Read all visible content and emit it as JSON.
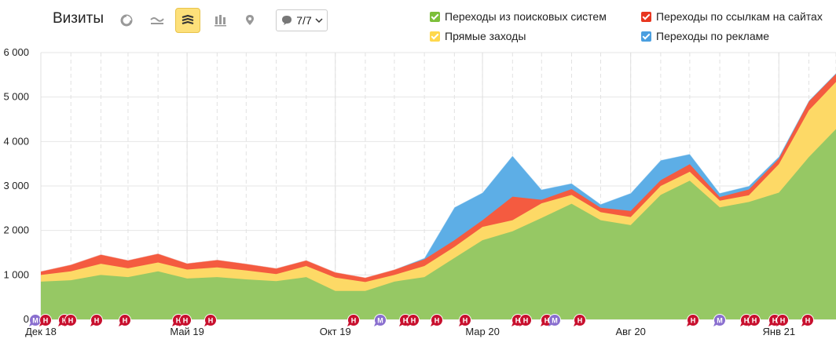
{
  "header": {
    "title": "Визиты",
    "annotations_label": "7/7",
    "tools": [
      "pie-chart-icon",
      "line-chart-icon",
      "stacked-area-icon",
      "bar-chart-icon",
      "map-icon"
    ]
  },
  "legend": [
    {
      "name": "Переходы из поисковых систем",
      "color": "#7cbf3a"
    },
    {
      "name": "Прямые заходы",
      "color": "#ffd84c"
    },
    {
      "name": "Переходы по ссылкам на сайтах",
      "color": "#e8361f"
    },
    {
      "name": "Переходы по рекламе",
      "color": "#4a9fe0"
    }
  ],
  "chart_data": {
    "type": "area",
    "stacked": true,
    "x": [
      "2018-12-01",
      "2019-01-01",
      "2019-02-01",
      "2019-03-01",
      "2019-04-01",
      "2019-05-01",
      "2019-06-01",
      "2019-07-01",
      "2019-08-01",
      "2019-09-01",
      "2019-10-01",
      "2019-11-01",
      "2019-12-01",
      "2020-01-01",
      "2020-02-01",
      "2020-03-01",
      "2020-04-01",
      "2020-05-01",
      "2020-06-01",
      "2020-07-01",
      "2020-08-01",
      "2020-09-01",
      "2020-10-01",
      "2020-11-01",
      "2020-12-01",
      "2021-01-01",
      "2021-02-01",
      "2021-03-01"
    ],
    "x_tick_labels": [
      "Дек 18",
      "Май 19",
      "Окт 19",
      "Мар 20",
      "Авг 20",
      "Янв 21"
    ],
    "x_tick_dates": [
      "2018-12-01",
      "2019-05-01",
      "2019-10-01",
      "2020-03-01",
      "2020-08-01",
      "2021-01-01"
    ],
    "series": [
      {
        "name": "Переходы из поисковых систем",
        "color": "#96c864",
        "values": [
          850,
          880,
          1000,
          950,
          1080,
          920,
          950,
          900,
          860,
          950,
          640,
          640,
          850,
          950,
          1380,
          1780,
          1980,
          2280,
          2600,
          2230,
          2120,
          2800,
          3120,
          2520,
          2640,
          2850,
          3650,
          4280
        ]
      },
      {
        "name": "Прямые заходы",
        "color": "#fdd966",
        "values": [
          150,
          200,
          250,
          200,
          200,
          200,
          220,
          200,
          160,
          250,
          300,
          200,
          150,
          250,
          250,
          300,
          250,
          330,
          200,
          180,
          180,
          200,
          200,
          150,
          150,
          640,
          1050,
          1060
        ]
      },
      {
        "name": "Переходы по ссылкам на сайтах",
        "color": "#f45b40",
        "values": [
          80,
          150,
          210,
          180,
          200,
          140,
          170,
          150,
          130,
          130,
          120,
          100,
          120,
          150,
          150,
          150,
          530,
          80,
          130,
          100,
          140,
          130,
          170,
          80,
          130,
          120,
          200,
          180
        ]
      },
      {
        "name": "Переходы по рекламе",
        "color": "#5daee6",
        "values": [
          0,
          0,
          0,
          0,
          0,
          0,
          0,
          0,
          0,
          0,
          0,
          0,
          0,
          30,
          740,
          620,
          920,
          230,
          130,
          80,
          400,
          450,
          230,
          90,
          80,
          50,
          20,
          20
        ]
      }
    ],
    "ylim": [
      0,
      6000
    ],
    "y_ticks": [
      0,
      1000,
      2000,
      3000,
      4000,
      5000,
      6000
    ],
    "y_tick_labels": [
      "0",
      "1 000",
      "2 000",
      "3 000",
      "4 000",
      "5 000",
      "6 000"
    ],
    "grid": true,
    "legend_position": "top-right",
    "event_markers": {
      "red_label": "Н",
      "purple_label": "М"
    }
  }
}
